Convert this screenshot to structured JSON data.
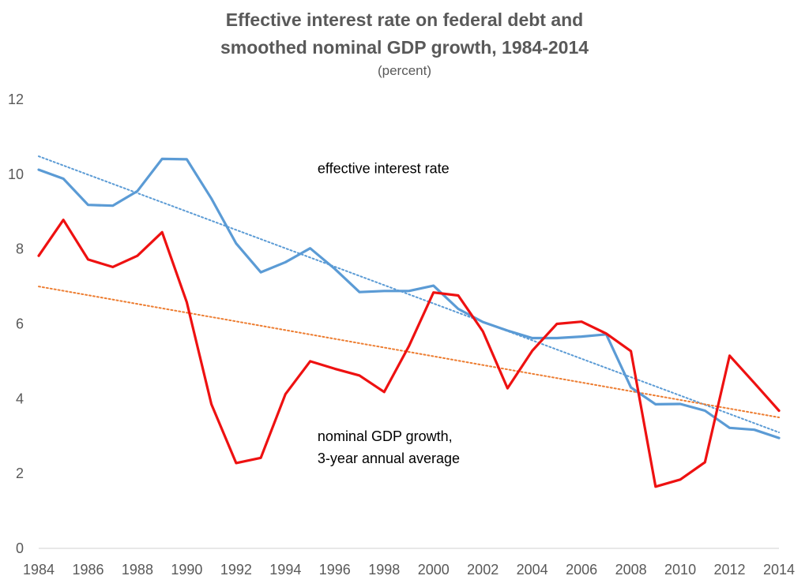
{
  "chart_data": {
    "type": "line",
    "title_line1": "Effective interest rate on federal debt and",
    "title_line2": "smoothed nominal GDP growth, 1984-2014",
    "subtitle": "(percent)",
    "xlabel": "",
    "ylabel": "",
    "ylim": [
      0,
      12
    ],
    "xlim": [
      1984,
      2014
    ],
    "yticks": [
      "0",
      "2",
      "4",
      "6",
      "8",
      "10",
      "12"
    ],
    "xticks": [
      "1984",
      "1986",
      "1988",
      "1990",
      "1992",
      "1994",
      "1996",
      "1998",
      "2000",
      "2002",
      "2004",
      "2006",
      "2008",
      "2010",
      "2012",
      "2014"
    ],
    "grid": false,
    "x": [
      1984,
      1985,
      1986,
      1987,
      1988,
      1989,
      1990,
      1991,
      1992,
      1993,
      1994,
      1995,
      1996,
      1997,
      1998,
      1999,
      2000,
      2001,
      2002,
      2003,
      2004,
      2005,
      2006,
      2007,
      2008,
      2009,
      2010,
      2011,
      2012,
      2013,
      2014
    ],
    "series": [
      {
        "name": "effective interest rate",
        "color": "#5b9bd5",
        "values": [
          10.12,
          9.88,
          9.18,
          9.16,
          9.55,
          10.41,
          10.4,
          9.35,
          8.15,
          7.38,
          7.65,
          8.02,
          7.47,
          6.85,
          6.88,
          6.88,
          7.02,
          6.4,
          6.05,
          5.82,
          5.62,
          5.62,
          5.66,
          5.72,
          4.3,
          3.85,
          3.86,
          3.68,
          3.22,
          3.17,
          2.95
        ],
        "trendline": {
          "color": "#5b9bd5",
          "start": 10.48,
          "end": 3.1
        }
      },
      {
        "name": "nominal GDP growth, 3-year annual average",
        "color": "#ee1111",
        "values": [
          7.82,
          8.78,
          7.72,
          7.52,
          7.82,
          8.45,
          6.58,
          3.85,
          2.28,
          2.42,
          4.12,
          5.0,
          4.8,
          4.62,
          4.18,
          5.4,
          6.84,
          6.76,
          5.8,
          4.28,
          5.28,
          6.0,
          6.06,
          5.74,
          5.27,
          1.65,
          1.84,
          2.3,
          5.15,
          4.42,
          3.68
        ],
        "trendline": {
          "color": "#ed7d31",
          "start": 7.0,
          "end": 3.5
        }
      }
    ],
    "annotations": [
      {
        "text": "effective interest rate",
        "x": 1995.3,
        "y": 10.15
      },
      {
        "text": "nominal GDP growth,",
        "x": 1995.3,
        "y": 3.0
      },
      {
        "text": "3-year annual average",
        "x": 1995.3,
        "y": 2.4
      }
    ]
  }
}
